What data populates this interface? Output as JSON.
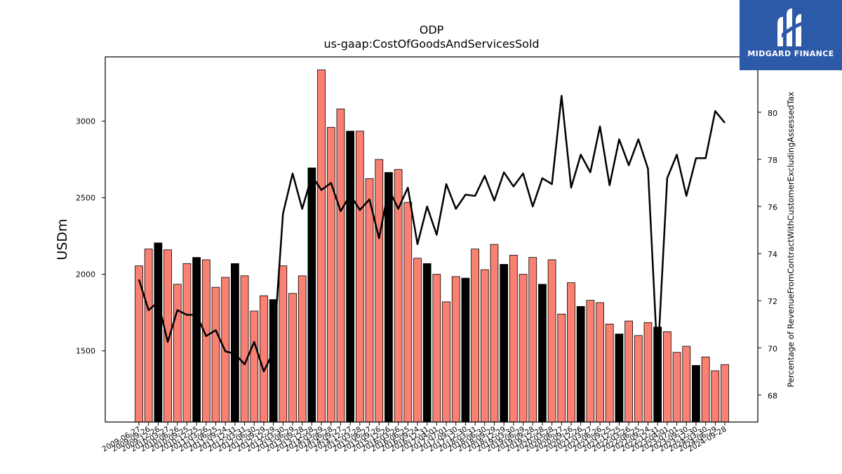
{
  "logo": {
    "text": "MIDGARD FINANCE"
  },
  "colors": {
    "bar_normal": "#fa8072",
    "bar_highlight": "#000000",
    "line": "#000000"
  },
  "chart_data": {
    "type": "bar",
    "title": "ODP",
    "subtitle": "us-gaap:CostOfGoodsAndServicesSold",
    "ylabel": "USDm",
    "y2label": "Percentage of RevenueFromContractWithCustomerExcludingAssessedTax",
    "ylim": [
      1035,
      3420
    ],
    "y2lim": [
      66.85,
      82.35
    ],
    "yticks": [
      1500,
      2000,
      2500,
      3000
    ],
    "y2ticks": [
      68,
      70,
      72,
      74,
      76,
      78,
      80
    ],
    "categories": [
      "2009-06-27",
      "2009-09-26",
      "2009-12-26",
      "2010-03-27",
      "2010-06-26",
      "2010-09-25",
      "2010-12-25",
      "2011-03-26",
      "2011-06-25",
      "2011-09-24",
      "2011-12-31",
      "2012-03-31",
      "2012-06-30",
      "2012-09-29",
      "2012-12-29",
      "2013-03-30",
      "2013-06-29",
      "2013-09-28",
      "2013-12-28",
      "2014-03-29",
      "2014-06-28",
      "2014-09-27",
      "2014-12-27",
      "2015-03-28",
      "2015-06-27",
      "2015-09-26",
      "2015-12-26",
      "2016-03-26",
      "2016-06-25",
      "2016-09-24",
      "2016-12-31",
      "2017-04-01",
      "2017-07-01",
      "2017-09-30",
      "2017-12-30",
      "2018-03-31",
      "2018-06-30",
      "2018-09-29",
      "2018-12-29",
      "2019-03-30",
      "2019-06-29",
      "2019-09-28",
      "2019-12-28",
      "2020-03-28",
      "2020-06-27",
      "2020-09-26",
      "2020-12-26",
      "2021-03-27",
      "2021-06-26",
      "2021-09-25",
      "2021-12-25",
      "2022-03-26",
      "2022-06-25",
      "2022-09-24",
      "2022-12-31",
      "2023-04-01",
      "2023-07-01",
      "2023-09-30",
      "2023-12-30",
      "2024-03-30",
      "2024-06-29",
      "2024-09-28"
    ],
    "xtick_labels": [
      "2009-06-27",
      "2009-09-26",
      "2009-12-26",
      "2010-03-27",
      "2010-06-26",
      "2010-09-25",
      "2010-12-25",
      "2011-03-26",
      "2011-06-25",
      "2011-09-24",
      "2011-12-31",
      "2012-03-31",
      "2012-06-30",
      "2012-09-29",
      "2012-12-29",
      "2013-03-30",
      "2013-06-29",
      "2013-09-28",
      "2013-12-28",
      "2014-03-29",
      "2014-06-28",
      "2014-09-27",
      "2014-12-27",
      "2015-03-28",
      "2015-06-27",
      "2015-09-26",
      "2015-12-26",
      "2016-03-26",
      "2016-06-25",
      "2016-09-24",
      "2016-12-31",
      "2017-04-01",
      "2017-07-01",
      "2017-09-30",
      "2017-12-30",
      "2018-03-31",
      "2018-06-30",
      "2018-09-29",
      "2018-12-29",
      "2019-03-30",
      "2019-06-29",
      "2019-09-28",
      "2019-12-28",
      "2020-03-28",
      "2020-06-27",
      "2020-09-26",
      "2020-12-26",
      "2021-03-27",
      "2021-06-26",
      "2021-09-25",
      "2021-12-25",
      "2022-03-26",
      "2022-06-25",
      "2022-09-24",
      "2022-12-31",
      "2023-04-01",
      "2023-07-01",
      "2023-09-30",
      "2023-12-30",
      "2024-03-30",
      "2024-06-29",
      "2024-09-28"
    ],
    "series": [
      {
        "kind": "bar",
        "axis": "left",
        "values": [
          2055,
          2165,
          2205,
          2160,
          1935,
          2070,
          2110,
          2095,
          1915,
          1980,
          2070,
          1990,
          1760,
          1860,
          1835,
          2055,
          1875,
          1990,
          2695,
          3335,
          2960,
          3080,
          2935,
          2935,
          2625,
          2750,
          2665,
          2685,
          2470,
          2105,
          2070,
          2000,
          1820,
          1985,
          1975,
          2165,
          2030,
          2195,
          2065,
          2125,
          2000,
          2110,
          1935,
          2095,
          1740,
          1945,
          1790,
          1830,
          1815,
          1675,
          1610,
          1695,
          1600,
          1685,
          1655,
          1625,
          1490,
          1530,
          1405,
          1460,
          1370,
          1410
        ],
        "highlight": [
          false,
          false,
          true,
          false,
          false,
          false,
          true,
          false,
          false,
          false,
          true,
          false,
          false,
          false,
          true,
          false,
          false,
          false,
          true,
          false,
          false,
          false,
          true,
          false,
          false,
          false,
          true,
          false,
          false,
          false,
          true,
          false,
          false,
          false,
          true,
          false,
          false,
          false,
          true,
          false,
          false,
          false,
          true,
          false,
          false,
          false,
          true,
          false,
          false,
          false,
          true,
          false,
          false,
          false,
          true,
          false,
          false,
          false,
          true,
          false,
          false,
          false
        ]
      },
      {
        "kind": "line",
        "axis": "right",
        "values": [
          72.9,
          71.6,
          71.95,
          70.25,
          71.6,
          71.4,
          71.4,
          70.5,
          70.75,
          69.85,
          69.75,
          69.3,
          70.25,
          69.0,
          69.85,
          75.7,
          77.4,
          75.9,
          77.3,
          76.7,
          77.0,
          75.8,
          76.5,
          75.85,
          76.3,
          74.65,
          76.75,
          75.9,
          76.8,
          74.4,
          76.0,
          74.8,
          76.95,
          75.9,
          76.5,
          76.45,
          77.3,
          76.25,
          77.45,
          76.85,
          77.4,
          76.0,
          77.2,
          76.95,
          80.7,
          76.8,
          78.2,
          77.45,
          79.4,
          76.9,
          78.85,
          77.75,
          78.85,
          77.6,
          69.45,
          77.2,
          78.2,
          76.45,
          78.05,
          78.05,
          80.05,
          79.55
        ]
      }
    ]
  }
}
